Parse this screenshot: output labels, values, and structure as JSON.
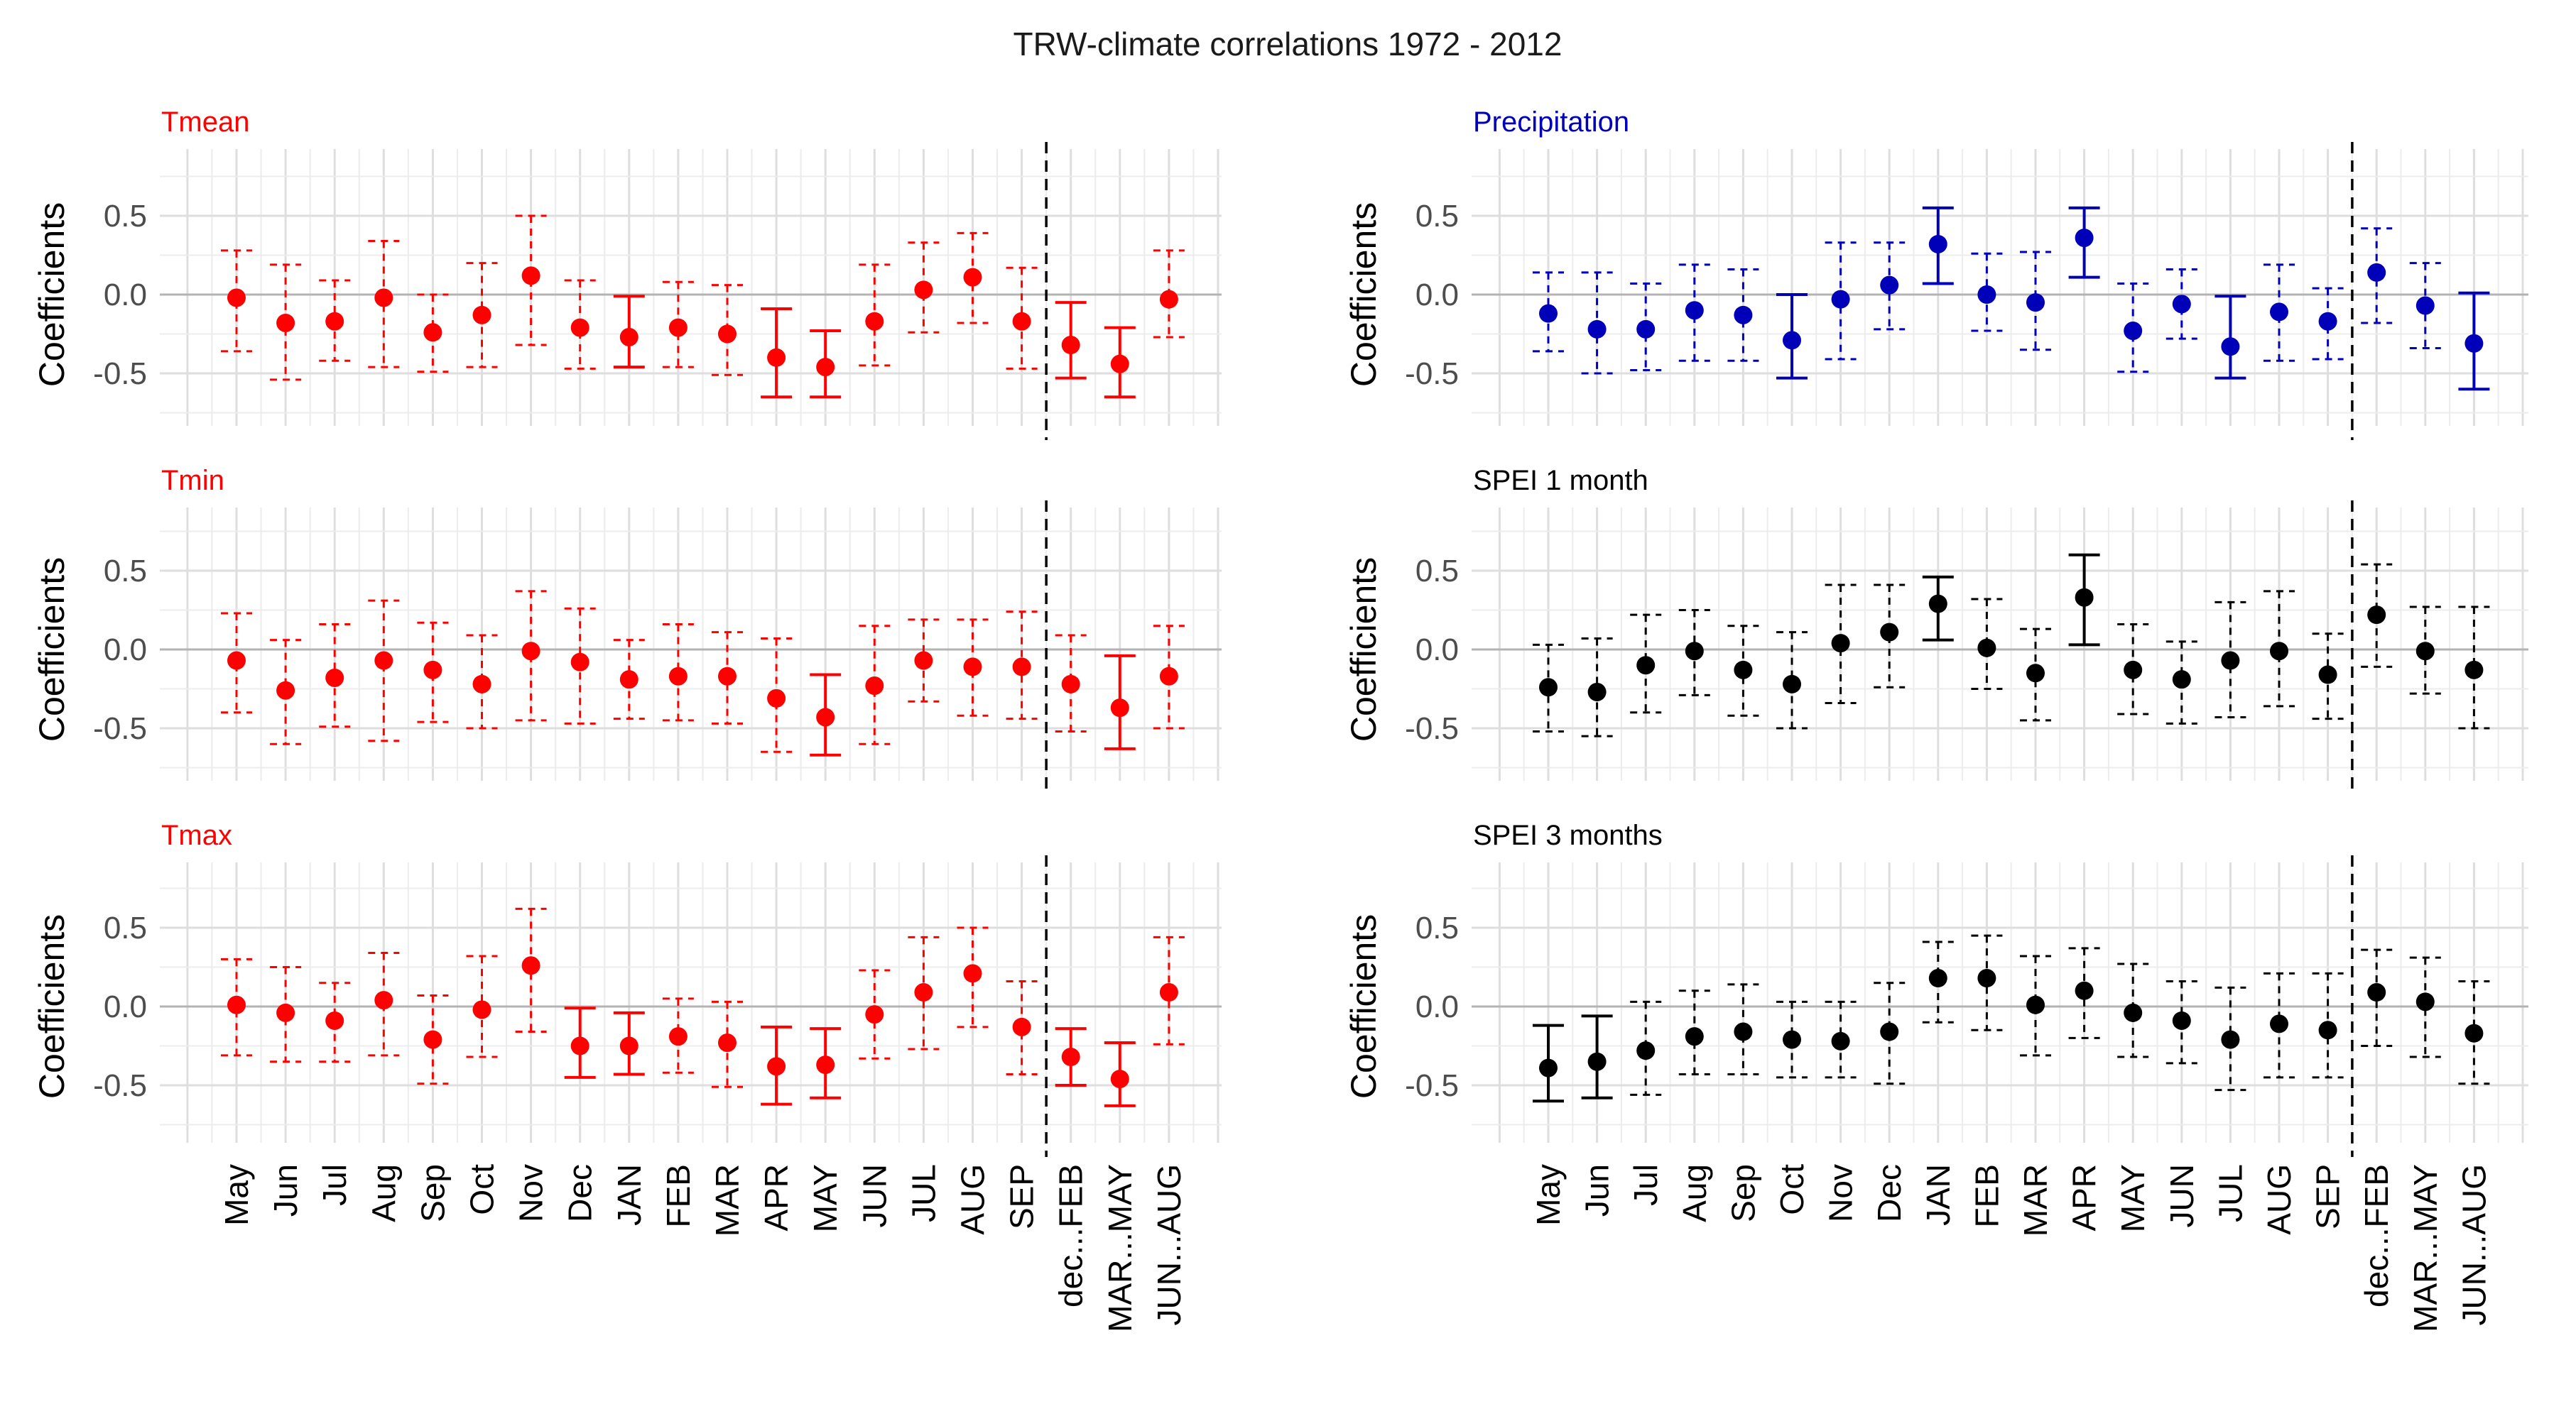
{
  "title": "TRW-climate correlations 1972 - 2012",
  "ylabel": "Coefficients",
  "y_ticks": [
    0.5,
    0.0,
    -0.5
  ],
  "y_tick_labels": [
    "0.5",
    "0.0",
    "-0.5"
  ],
  "colors": {
    "red": "#ff0000",
    "blue": "#0000b8",
    "black": "#000000"
  },
  "x_categories": {
    "left": [
      "May",
      "Jun",
      "Jul",
      "Aug",
      "Sep",
      "Oct",
      "Nov",
      "Dec",
      "JAN",
      "FEB",
      "MAR",
      "APR",
      "MAY",
      "JUN",
      "JUL",
      "AUG",
      "SEP",
      "dec...FEB",
      "MAR...MAY",
      "JUN...AUG"
    ],
    "right": [
      "May",
      "Jun",
      "Jul",
      "Aug",
      "Sep",
      "Oct",
      "Nov",
      "Dec",
      "JAN",
      "FEB",
      "MAR",
      "APR",
      "MAY",
      "JUN",
      "JUL",
      "AUG",
      "SEP",
      "dec...FEB",
      "MAR...MAY",
      "JUN...AUG"
    ]
  },
  "chart_data": [
    {
      "type": "scatter",
      "title": "Tmean",
      "color": "red",
      "ylim": [
        -0.85,
        0.85
      ],
      "categories": [
        "May",
        "Jun",
        "Jul",
        "Aug",
        "Sep",
        "Oct",
        "Nov",
        "Dec",
        "JAN",
        "FEB",
        "MAR",
        "APR",
        "MAY",
        "JUN",
        "JUL",
        "AUG",
        "SEP",
        "dec...FEB",
        "MAR...MAY",
        "JUN...AUG"
      ],
      "values": [
        -0.02,
        -0.18,
        -0.17,
        -0.02,
        -0.24,
        -0.13,
        0.12,
        -0.21,
        -0.27,
        -0.21,
        -0.25,
        -0.4,
        -0.46,
        -0.17,
        0.03,
        0.11,
        -0.17,
        -0.32,
        -0.44,
        -0.03
      ],
      "lower": [
        -0.36,
        -0.54,
        -0.42,
        -0.46,
        -0.49,
        -0.46,
        -0.32,
        -0.47,
        -0.46,
        -0.46,
        -0.51,
        -0.65,
        -0.65,
        -0.45,
        -0.24,
        -0.18,
        -0.47,
        -0.53,
        -0.65,
        -0.27
      ],
      "upper": [
        0.28,
        0.19,
        0.09,
        0.34,
        0.0,
        0.2,
        0.5,
        0.09,
        -0.01,
        0.08,
        0.06,
        -0.09,
        -0.23,
        0.19,
        0.33,
        0.39,
        0.17,
        -0.05,
        -0.21,
        0.28
      ],
      "significant": [
        false,
        false,
        false,
        false,
        false,
        false,
        false,
        false,
        true,
        false,
        false,
        true,
        true,
        false,
        false,
        false,
        false,
        true,
        true,
        false
      ]
    },
    {
      "type": "scatter",
      "title": "Precipitation",
      "color": "blue",
      "ylim": [
        -0.85,
        0.85
      ],
      "categories": [
        "May",
        "Jun",
        "Jul",
        "Aug",
        "Sep",
        "Oct",
        "Nov",
        "Dec",
        "JAN",
        "FEB",
        "MAR",
        "APR",
        "MAY",
        "JUN",
        "JUL",
        "AUG",
        "SEP",
        "dec...FEB",
        "MAR...MAY",
        "JUN...AUG"
      ],
      "values": [
        -0.12,
        -0.22,
        -0.22,
        -0.1,
        -0.13,
        -0.29,
        -0.03,
        0.06,
        0.32,
        0.0,
        -0.05,
        0.36,
        -0.23,
        -0.06,
        -0.33,
        -0.11,
        -0.17,
        0.14,
        -0.07,
        -0.31
      ],
      "lower": [
        -0.36,
        -0.5,
        -0.48,
        -0.42,
        -0.42,
        -0.53,
        -0.41,
        -0.22,
        0.07,
        -0.23,
        -0.35,
        0.11,
        -0.49,
        -0.28,
        -0.53,
        -0.42,
        -0.41,
        -0.18,
        -0.34,
        -0.6
      ],
      "upper": [
        0.14,
        0.14,
        0.07,
        0.19,
        0.16,
        0.0,
        0.33,
        0.33,
        0.55,
        0.26,
        0.27,
        0.55,
        0.07,
        0.16,
        -0.01,
        0.19,
        0.04,
        0.42,
        0.2,
        0.01
      ],
      "significant": [
        false,
        false,
        false,
        false,
        false,
        true,
        false,
        false,
        true,
        false,
        false,
        true,
        false,
        false,
        true,
        false,
        false,
        false,
        false,
        true
      ]
    },
    {
      "type": "scatter",
      "title": "Tmin",
      "color": "red",
      "ylim": [
        -0.85,
        0.85
      ],
      "categories": [
        "May",
        "Jun",
        "Jul",
        "Aug",
        "Sep",
        "Oct",
        "Nov",
        "Dec",
        "JAN",
        "FEB",
        "MAR",
        "APR",
        "MAY",
        "JUN",
        "JUL",
        "AUG",
        "SEP",
        "dec...FEB",
        "MAR...MAY",
        "JUN...AUG"
      ],
      "values": [
        -0.07,
        -0.26,
        -0.18,
        -0.07,
        -0.13,
        -0.22,
        -0.01,
        -0.08,
        -0.19,
        -0.17,
        -0.17,
        -0.31,
        -0.43,
        -0.23,
        -0.07,
        -0.11,
        -0.11,
        -0.22,
        -0.37,
        -0.17
      ],
      "lower": [
        -0.4,
        -0.6,
        -0.49,
        -0.58,
        -0.46,
        -0.5,
        -0.45,
        -0.47,
        -0.44,
        -0.45,
        -0.47,
        -0.65,
        -0.67,
        -0.6,
        -0.33,
        -0.42,
        -0.44,
        -0.52,
        -0.63,
        -0.5
      ],
      "upper": [
        0.23,
        0.06,
        0.16,
        0.31,
        0.17,
        0.09,
        0.37,
        0.26,
        0.06,
        0.16,
        0.11,
        0.07,
        -0.16,
        0.15,
        0.19,
        0.19,
        0.24,
        0.09,
        -0.04,
        0.15
      ],
      "significant": [
        false,
        false,
        false,
        false,
        false,
        false,
        false,
        false,
        false,
        false,
        false,
        false,
        true,
        false,
        false,
        false,
        false,
        false,
        true,
        false
      ]
    },
    {
      "type": "scatter",
      "title": "SPEI 1 month",
      "color": "black",
      "ylim": [
        -0.85,
        0.85
      ],
      "categories": [
        "May",
        "Jun",
        "Jul",
        "Aug",
        "Sep",
        "Oct",
        "Nov",
        "Dec",
        "JAN",
        "FEB",
        "MAR",
        "APR",
        "MAY",
        "JUN",
        "JUL",
        "AUG",
        "SEP",
        "dec...FEB",
        "MAR...MAY",
        "JUN...AUG"
      ],
      "values": [
        -0.24,
        -0.27,
        -0.1,
        -0.01,
        -0.13,
        -0.22,
        0.04,
        0.11,
        0.29,
        0.01,
        -0.15,
        0.33,
        -0.13,
        -0.19,
        -0.07,
        -0.01,
        -0.16,
        0.22,
        -0.01,
        -0.13
      ],
      "lower": [
        -0.52,
        -0.55,
        -0.4,
        -0.29,
        -0.42,
        -0.5,
        -0.34,
        -0.24,
        0.06,
        -0.25,
        -0.45,
        0.03,
        -0.41,
        -0.47,
        -0.43,
        -0.36,
        -0.44,
        -0.11,
        -0.28,
        -0.5
      ],
      "upper": [
        0.03,
        0.07,
        0.22,
        0.25,
        0.15,
        0.11,
        0.41,
        0.41,
        0.46,
        0.32,
        0.13,
        0.6,
        0.16,
        0.05,
        0.3,
        0.37,
        0.1,
        0.54,
        0.27,
        0.27
      ],
      "significant": [
        false,
        false,
        false,
        false,
        false,
        false,
        false,
        false,
        true,
        false,
        false,
        true,
        false,
        false,
        false,
        false,
        false,
        false,
        false,
        false
      ]
    },
    {
      "type": "scatter",
      "title": "Tmax",
      "color": "red",
      "ylim": [
        -0.85,
        0.85
      ],
      "categories": [
        "May",
        "Jun",
        "Jul",
        "Aug",
        "Sep",
        "Oct",
        "Nov",
        "Dec",
        "JAN",
        "FEB",
        "MAR",
        "APR",
        "MAY",
        "JUN",
        "JUL",
        "AUG",
        "SEP",
        "dec...FEB",
        "MAR...MAY",
        "JUN...AUG"
      ],
      "values": [
        0.01,
        -0.04,
        -0.09,
        0.04,
        -0.21,
        -0.02,
        0.26,
        -0.25,
        -0.25,
        -0.19,
        -0.23,
        -0.38,
        -0.37,
        -0.05,
        0.09,
        0.21,
        -0.13,
        -0.32,
        -0.46,
        0.09
      ],
      "lower": [
        -0.31,
        -0.35,
        -0.35,
        -0.31,
        -0.49,
        -0.32,
        -0.16,
        -0.45,
        -0.43,
        -0.42,
        -0.51,
        -0.62,
        -0.58,
        -0.33,
        -0.27,
        -0.13,
        -0.43,
        -0.5,
        -0.63,
        -0.24
      ],
      "upper": [
        0.3,
        0.25,
        0.15,
        0.34,
        0.07,
        0.32,
        0.62,
        -0.01,
        -0.04,
        0.05,
        0.03,
        -0.13,
        -0.14,
        0.23,
        0.44,
        0.5,
        0.16,
        -0.14,
        -0.23,
        0.44
      ],
      "significant": [
        false,
        false,
        false,
        false,
        false,
        false,
        false,
        true,
        true,
        false,
        false,
        true,
        true,
        false,
        false,
        false,
        false,
        true,
        true,
        false
      ]
    },
    {
      "type": "scatter",
      "title": "SPEI 3 months",
      "color": "black",
      "ylim": [
        -0.85,
        0.85
      ],
      "categories": [
        "May",
        "Jun",
        "Jul",
        "Aug",
        "Sep",
        "Oct",
        "Nov",
        "Dec",
        "JAN",
        "FEB",
        "MAR",
        "APR",
        "MAY",
        "JUN",
        "JUL",
        "AUG",
        "SEP",
        "dec...FEB",
        "MAR...MAY",
        "JUN...AUG"
      ],
      "values": [
        -0.39,
        -0.35,
        -0.28,
        -0.19,
        -0.16,
        -0.21,
        -0.22,
        -0.16,
        0.18,
        0.18,
        0.01,
        0.1,
        -0.04,
        -0.09,
        -0.21,
        -0.11,
        -0.15,
        0.09,
        0.03,
        -0.17
      ],
      "lower": [
        -0.6,
        -0.58,
        -0.56,
        -0.43,
        -0.43,
        -0.45,
        -0.45,
        -0.49,
        -0.1,
        -0.15,
        -0.31,
        -0.2,
        -0.32,
        -0.36,
        -0.53,
        -0.45,
        -0.45,
        -0.25,
        -0.32,
        -0.49
      ],
      "upper": [
        -0.12,
        -0.06,
        0.03,
        0.1,
        0.14,
        0.03,
        0.03,
        0.15,
        0.41,
        0.45,
        0.32,
        0.37,
        0.27,
        0.16,
        0.12,
        0.21,
        0.21,
        0.36,
        0.31,
        0.16
      ],
      "significant": [
        true,
        true,
        false,
        false,
        false,
        false,
        false,
        false,
        false,
        false,
        false,
        false,
        false,
        false,
        false,
        false,
        false,
        false,
        false,
        false
      ]
    }
  ]
}
